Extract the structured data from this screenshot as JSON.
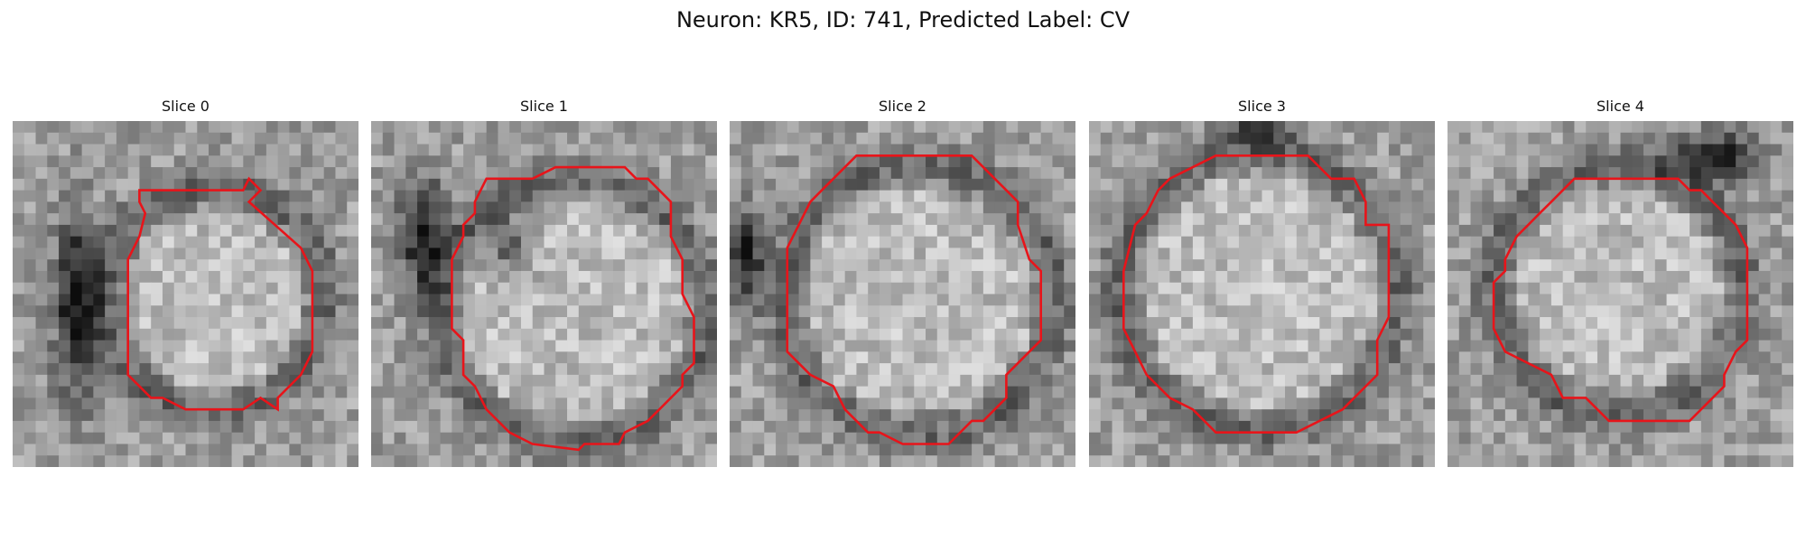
{
  "figure": {
    "title": "Neuron: KR5, ID: 741, Predicted Label: CV",
    "contour_color": "#e8141a",
    "image_colormap": "grayscale",
    "grid_size": 30
  },
  "slices": [
    {
      "label": "Slice 0",
      "contour": [
        [
          11,
          6
        ],
        [
          20,
          6
        ],
        [
          20.5,
          5
        ],
        [
          21,
          5.5
        ],
        [
          21.5,
          6
        ],
        [
          20.5,
          7
        ],
        [
          25,
          11
        ],
        [
          26,
          13
        ],
        [
          26,
          20
        ],
        [
          25,
          22
        ],
        [
          23,
          24
        ],
        [
          23,
          25
        ],
        [
          21.5,
          24
        ],
        [
          20,
          25
        ],
        [
          15,
          25
        ],
        [
          13,
          24
        ],
        [
          12,
          24
        ],
        [
          11,
          23
        ],
        [
          10,
          22
        ],
        [
          10,
          16
        ],
        [
          10,
          12
        ],
        [
          11,
          10
        ],
        [
          11.5,
          8
        ],
        [
          11,
          7
        ]
      ]
    },
    {
      "label": "Slice 1",
      "contour": [
        [
          10,
          5
        ],
        [
          14,
          5
        ],
        [
          16,
          4
        ],
        [
          22,
          4
        ],
        [
          23,
          5
        ],
        [
          24,
          5
        ],
        [
          26,
          7
        ],
        [
          26,
          10
        ],
        [
          27,
          12
        ],
        [
          27,
          15
        ],
        [
          28,
          17
        ],
        [
          28,
          21
        ],
        [
          27,
          22
        ],
        [
          27,
          23
        ],
        [
          25,
          25
        ],
        [
          24,
          26
        ],
        [
          22,
          27
        ],
        [
          21.5,
          28
        ],
        [
          18.5,
          28
        ],
        [
          18,
          28.5
        ],
        [
          14,
          28
        ],
        [
          12,
          27
        ],
        [
          10,
          25
        ],
        [
          9,
          23
        ],
        [
          8,
          22
        ],
        [
          8,
          19
        ],
        [
          7,
          18
        ],
        [
          7,
          12
        ],
        [
          8,
          10
        ],
        [
          8,
          9
        ],
        [
          9,
          8
        ],
        [
          9,
          7
        ]
      ]
    },
    {
      "label": "Slice 2",
      "contour": [
        [
          11,
          3
        ],
        [
          21,
          3
        ],
        [
          22,
          4
        ],
        [
          23,
          5
        ],
        [
          24,
          6
        ],
        [
          25,
          7
        ],
        [
          25,
          9
        ],
        [
          26,
          12
        ],
        [
          27,
          13
        ],
        [
          27,
          19
        ],
        [
          26,
          20
        ],
        [
          24,
          22
        ],
        [
          24,
          24
        ],
        [
          22,
          26
        ],
        [
          21,
          26
        ],
        [
          19,
          28
        ],
        [
          15,
          28
        ],
        [
          13,
          27
        ],
        [
          12,
          27
        ],
        [
          10,
          25
        ],
        [
          9,
          23
        ],
        [
          7,
          22
        ],
        [
          5,
          20
        ],
        [
          5,
          14
        ],
        [
          5,
          11
        ],
        [
          6,
          9
        ],
        [
          7,
          7
        ],
        [
          8,
          6
        ],
        [
          9,
          5
        ]
      ]
    },
    {
      "label": "Slice 3",
      "contour": [
        [
          11,
          3
        ],
        [
          19,
          3
        ],
        [
          20,
          4
        ],
        [
          21,
          5
        ],
        [
          23,
          5
        ],
        [
          24,
          7
        ],
        [
          24,
          9
        ],
        [
          26,
          9
        ],
        [
          26,
          17
        ],
        [
          25,
          19
        ],
        [
          25,
          22
        ],
        [
          23,
          24
        ],
        [
          22,
          25
        ],
        [
          20,
          26
        ],
        [
          18,
          27
        ],
        [
          11,
          27
        ],
        [
          10,
          26
        ],
        [
          9,
          25
        ],
        [
          7,
          24
        ],
        [
          5,
          22
        ],
        [
          4,
          20
        ],
        [
          3,
          18
        ],
        [
          3,
          13
        ],
        [
          4,
          9
        ],
        [
          5,
          8
        ],
        [
          6,
          6
        ],
        [
          7,
          5
        ],
        [
          9,
          4
        ]
      ]
    },
    {
      "label": "Slice 4",
      "contour": [
        [
          11,
          5
        ],
        [
          20,
          5
        ],
        [
          21,
          6
        ],
        [
          22,
          6
        ],
        [
          23,
          7
        ],
        [
          24,
          8
        ],
        [
          25,
          9
        ],
        [
          26,
          11
        ],
        [
          26,
          19
        ],
        [
          25,
          20
        ],
        [
          24,
          22
        ],
        [
          24,
          23
        ],
        [
          23,
          24
        ],
        [
          21,
          26
        ],
        [
          14,
          26
        ],
        [
          12,
          24
        ],
        [
          10,
          24
        ],
        [
          9,
          22
        ],
        [
          7,
          21
        ],
        [
          5,
          20
        ],
        [
          4,
          18
        ],
        [
          4,
          14
        ],
        [
          5,
          13
        ],
        [
          5,
          12
        ],
        [
          6,
          10
        ],
        [
          7,
          9
        ],
        [
          8,
          8
        ],
        [
          9,
          7
        ],
        [
          10,
          6
        ]
      ]
    }
  ]
}
